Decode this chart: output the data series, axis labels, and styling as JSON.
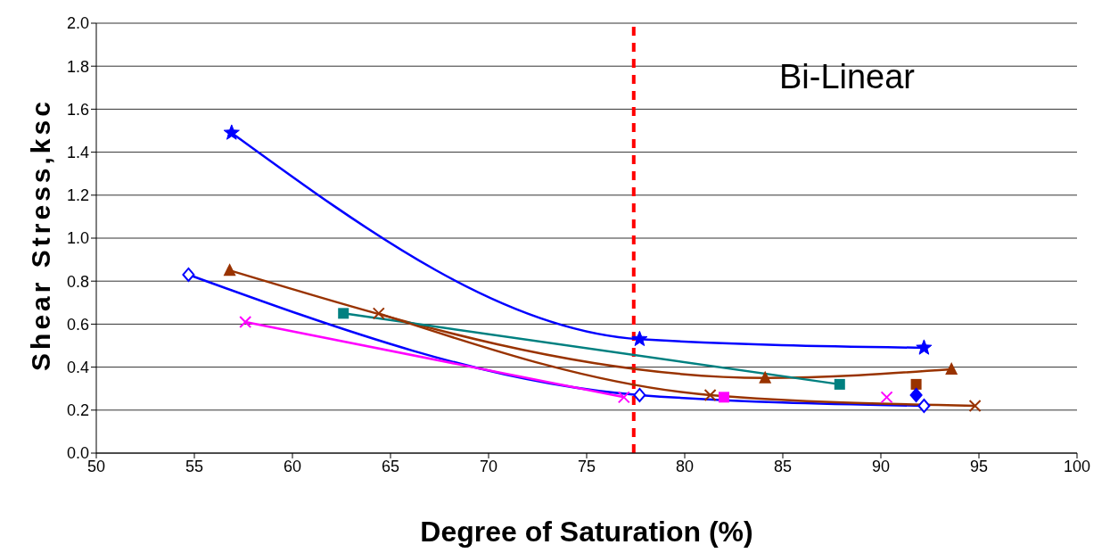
{
  "chart_data": {
    "type": "line",
    "xlabel": "Degree of Saturation (%)",
    "ylabel": "Shear Stress,ksc",
    "annotations": [
      "Bi-Linear"
    ],
    "xlim": [
      50,
      100
    ],
    "xticks": [
      50,
      55,
      60,
      65,
      70,
      75,
      80,
      85,
      90,
      95,
      100
    ],
    "ylim": [
      0,
      2
    ],
    "yticks": [
      {
        "value": 0,
        "label": "0.0"
      },
      {
        "value": 0.2,
        "label": "0.2"
      },
      {
        "value": 0.4,
        "label": "0.4"
      },
      {
        "value": 0.6,
        "label": "0.6"
      },
      {
        "value": 0.8,
        "label": "0.8"
      },
      {
        "value": 1,
        "label": "1.0"
      },
      {
        "value": 1.2,
        "label": "1.2"
      },
      {
        "value": 1.4,
        "label": "1.4"
      },
      {
        "value": 1.6,
        "label": "1.6"
      },
      {
        "value": 1.8,
        "label": "1.8"
      },
      {
        "value": 2,
        "label": "2.0"
      }
    ],
    "grid": "y",
    "line_style": "solid",
    "ref_lines": [
      {
        "axis": "x",
        "value": 77.4,
        "color": "#ff0000",
        "line_style": "dashed"
      }
    ],
    "series": [
      {
        "color": "#0000ff",
        "marker": "star",
        "x": [
          56.9,
          77.7,
          92.2
        ],
        "values": [
          1.49,
          0.53,
          0.49
        ]
      },
      {
        "color": "#0000ff",
        "marker": "diamond",
        "x": [
          54.7,
          77.7,
          92.2
        ],
        "values": [
          0.83,
          0.27,
          0.22
        ]
      },
      {
        "color": "#993300",
        "marker": "triangle",
        "x": [
          56.8,
          84.1,
          93.6
        ],
        "values": [
          0.85,
          0.35,
          0.39
        ]
      },
      {
        "color": "#008080",
        "marker": "square",
        "x": [
          62.6,
          87.9
        ],
        "values": [
          0.65,
          0.32
        ]
      },
      {
        "color": "#993300",
        "marker": "cross",
        "x": [
          64.4,
          81.3,
          94.8
        ],
        "values": [
          0.65,
          0.27,
          0.22
        ]
      },
      {
        "color": "#ff00ff",
        "marker": "cross",
        "x": [
          57.6,
          76.9
        ],
        "values": [
          0.61,
          0.26
        ]
      },
      {
        "type": "scatter",
        "color": "#ff00ff",
        "marker": "square",
        "x": [
          82
        ],
        "values": [
          0.26
        ]
      },
      {
        "type": "scatter",
        "color": "#993300",
        "marker": "square",
        "x": [
          91.8
        ],
        "values": [
          0.32
        ]
      },
      {
        "type": "scatter",
        "color": "#0000ff",
        "marker": "diamond",
        "x": [
          91.8
        ],
        "values": [
          0.27
        ]
      },
      {
        "type": "scatter",
        "color": "#ff00ff",
        "marker": "cross",
        "x": [
          90.3
        ],
        "values": [
          0.26
        ]
      }
    ]
  }
}
